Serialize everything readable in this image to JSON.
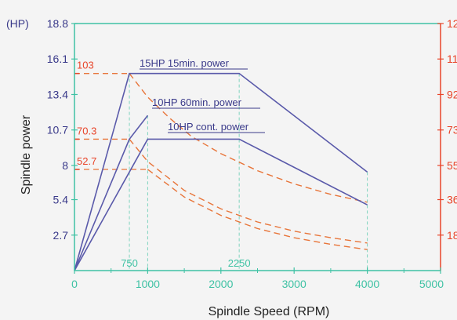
{
  "chart_data": {
    "type": "line",
    "xlabel": "Spindle Speed (RPM)",
    "ylabel": "Spindle power",
    "y_unit": "(HP)",
    "xlim": [
      0,
      5000
    ],
    "ylim": [
      0,
      18.8
    ],
    "x_ticks": [
      "0",
      "1000",
      "2000",
      "3000",
      "4000",
      "5000"
    ],
    "y_ticks": [
      "2.7",
      "5.4",
      "8",
      "10.7",
      "13.4",
      "16.1",
      "18.8"
    ],
    "y2_ticks": [
      "12",
      "11",
      "92",
      "73",
      "55",
      "36",
      "18"
    ],
    "x_markers": [
      "750",
      "2250"
    ],
    "torque_labels": [
      "103",
      "70.3",
      "52.7"
    ],
    "series": [
      {
        "name": "15HP 15min. power",
        "color": "#5a5aaa",
        "x": [
          0,
          750,
          2250,
          4000
        ],
        "y": [
          0,
          15,
          15,
          7.5
        ]
      },
      {
        "name": "10HP 60min. power",
        "color": "#5a5aaa",
        "x": [
          0,
          750,
          1000
        ],
        "y": [
          0,
          10,
          11.8
        ]
      },
      {
        "name": "10HP cont. power",
        "color": "#5a5aaa",
        "x": [
          0,
          1000,
          2250,
          4000
        ],
        "y": [
          0,
          10,
          10,
          5
        ]
      }
    ],
    "torque_curves": [
      {
        "color": "#e8753a",
        "x": [
          0,
          750,
          1000,
          1300,
          1600,
          2000,
          2500,
          3000,
          3500,
          4000
        ],
        "y": [
          15,
          15,
          13.2,
          11.6,
          10.2,
          8.9,
          7.6,
          6.6,
          5.8,
          5.2
        ]
      },
      {
        "color": "#e8753a",
        "x": [
          0,
          750,
          1000,
          1500,
          2000,
          2500,
          3000,
          3500,
          4000
        ],
        "y": [
          10,
          10,
          8.3,
          6.1,
          4.7,
          3.7,
          3.0,
          2.5,
          2.1
        ]
      },
      {
        "color": "#e8753a",
        "x": [
          0,
          1000,
          1500,
          2000,
          2500,
          3000,
          3500,
          4000
        ],
        "y": [
          7.7,
          7.7,
          5.6,
          4.2,
          3.2,
          2.5,
          2.0,
          1.6
        ]
      }
    ],
    "colors": {
      "axis": "#3fc2a4",
      "left_text": "#3a3a8a",
      "right_axis": "#e8452a",
      "power_line": "#5a5aaa",
      "torque_line": "#e8753a",
      "guide": "#7fd4be"
    },
    "grid": false
  }
}
